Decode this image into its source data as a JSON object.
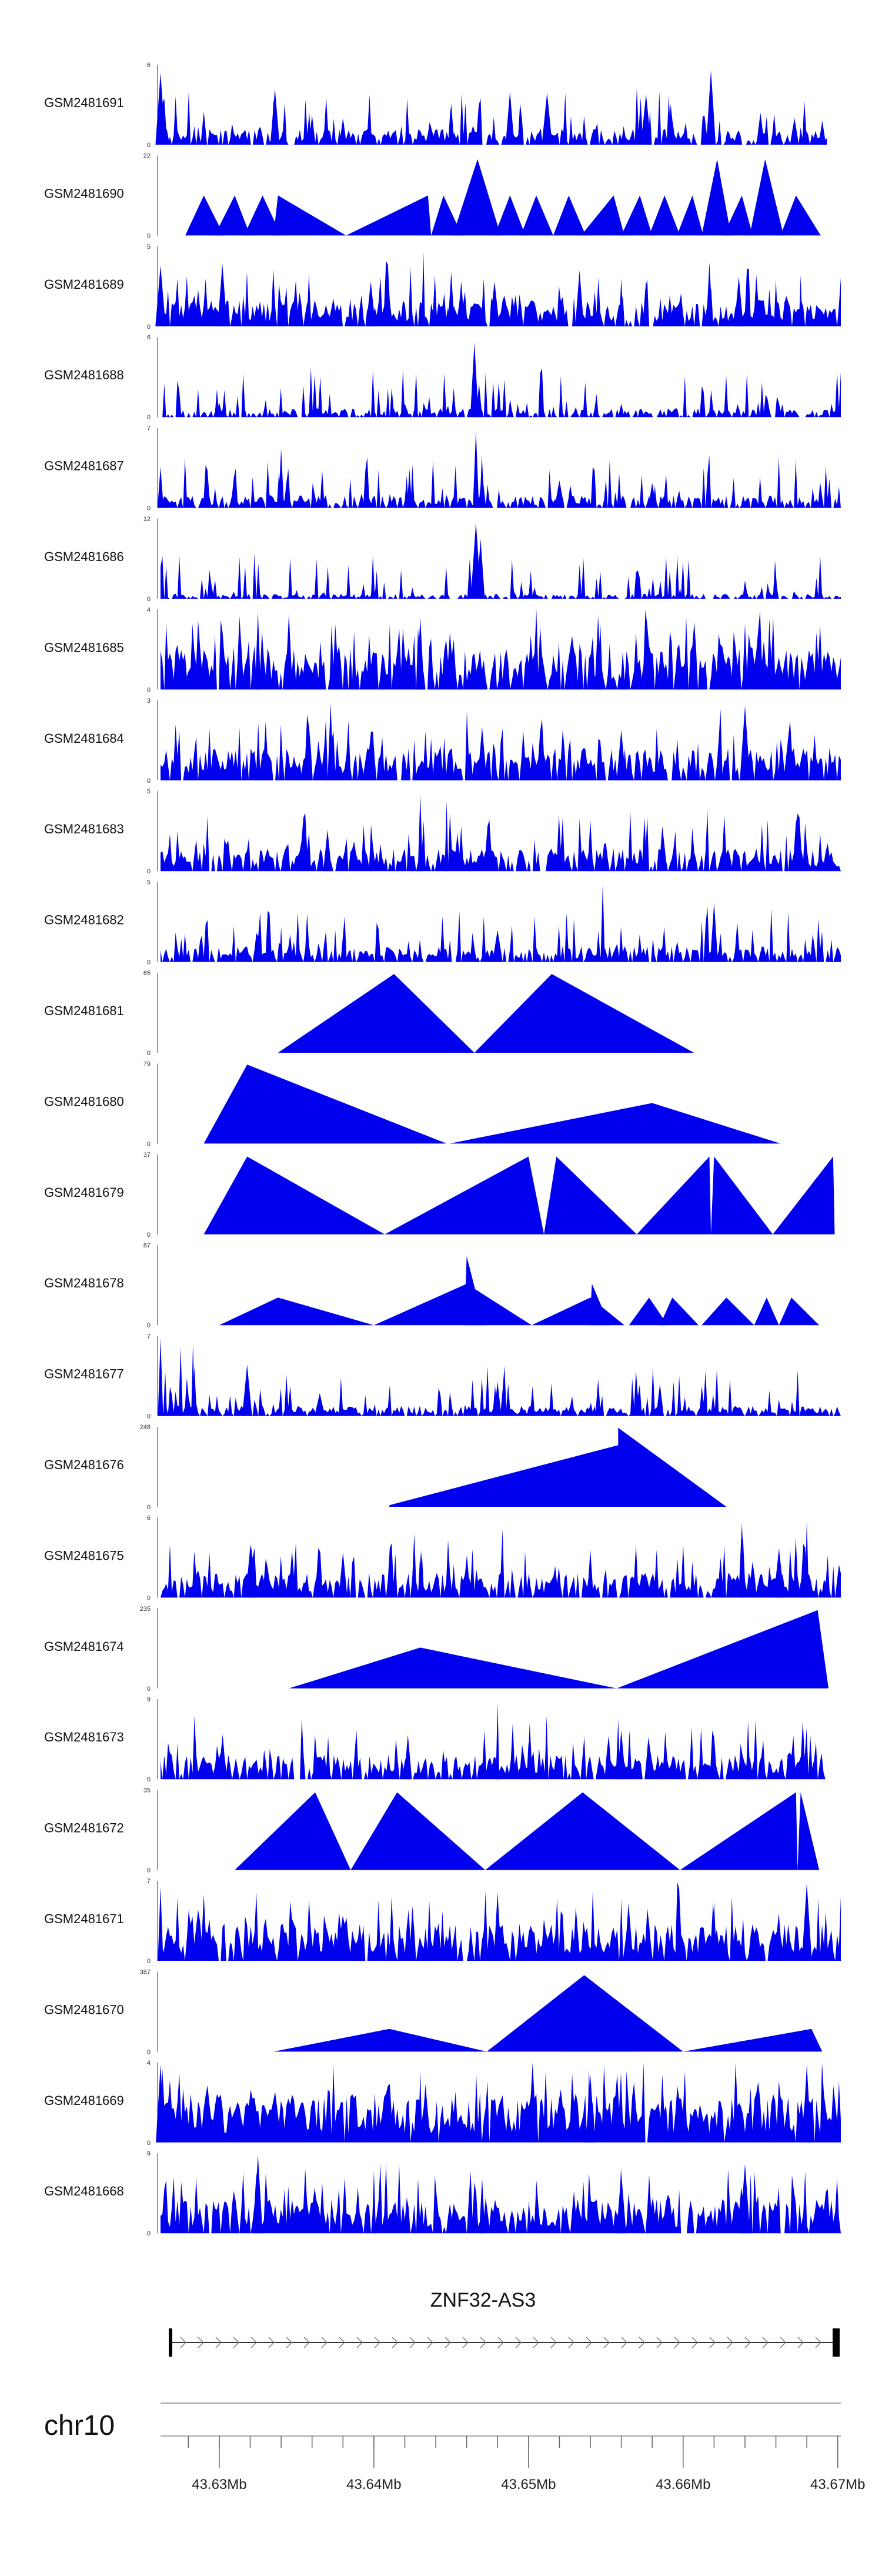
{
  "chart_data": {
    "type": "area",
    "colors": {
      "coverage": "#0000ee",
      "axis": "#555555",
      "text": "#111111"
    },
    "x_domain": [
      43.6262,
      43.6702
    ],
    "tracks": [
      {
        "name": "GSM2481691",
        "ymax": "6",
        "ymin": "0",
        "ymax_value": 6,
        "peaks": [
          [
            43.6262,
            5.4
          ],
          [
            43.6266,
            1.2
          ],
          [
            43.629,
            2.5
          ],
          [
            43.6336,
            4.2
          ],
          [
            43.636,
            2.2
          ],
          [
            43.638,
            2.0
          ],
          [
            43.645,
            3.1
          ],
          [
            43.6488,
            4.0
          ],
          [
            43.6512,
            3.9
          ],
          [
            43.6576,
            3.8
          ],
          [
            43.6592,
            3.0
          ],
          [
            43.6618,
            5.6
          ],
          [
            43.665,
            2.4
          ],
          [
            43.6672,
            2.0
          ],
          [
            43.669,
            1.8
          ]
        ],
        "base": 1.1,
        "density": 0.78,
        "start": 43.6262,
        "end": 43.6693
      },
      {
        "name": "GSM2481690",
        "ymax": "22",
        "ymin": "0",
        "ymax_value": 22,
        "triangles": [
          [
            43.6278,
            43.629,
            43.6303,
            11
          ],
          [
            43.6297,
            43.631,
            43.632,
            11
          ],
          [
            43.6316,
            43.6328,
            43.634,
            11
          ],
          [
            43.6335,
            43.6338,
            43.6382,
            11
          ],
          [
            43.6382,
            43.6435,
            43.6437,
            11
          ],
          [
            43.6437,
            43.6445,
            43.6457,
            11
          ],
          [
            43.6451,
            43.6467,
            43.6482,
            21
          ],
          [
            43.6478,
            43.6488,
            43.6498,
            11
          ],
          [
            43.6495,
            43.6505,
            43.6516,
            11
          ],
          [
            43.6516,
            43.6526,
            43.6537,
            11
          ],
          [
            43.6534,
            43.6555,
            43.6562,
            11
          ],
          [
            43.656,
            43.6572,
            43.658,
            11
          ],
          [
            43.6578,
            43.6588,
            43.6598,
            11
          ],
          [
            43.6596,
            43.6606,
            43.6613,
            11
          ],
          [
            43.6612,
            43.6622,
            43.6631,
            21
          ],
          [
            43.6626,
            43.6638,
            43.6645,
            11
          ],
          [
            43.6643,
            43.6653,
            43.6665,
            21
          ],
          [
            43.6663,
            43.6673,
            43.6689,
            11
          ]
        ]
      },
      {
        "name": "GSM2481689",
        "ymax": "5",
        "ymin": "0",
        "ymax_value": 5,
        "peaks": [
          [
            43.6262,
            3.8
          ],
          [
            43.6302,
            3.9
          ],
          [
            43.6358,
            3.3
          ],
          [
            43.6398,
            2.8
          ],
          [
            43.6432,
            4.7
          ],
          [
            43.645,
            3.4
          ],
          [
            43.6478,
            2.8
          ],
          [
            43.6533,
            3.5
          ],
          [
            43.656,
            3.0
          ],
          [
            43.6576,
            2.9
          ],
          [
            43.6617,
            4.0
          ],
          [
            43.6636,
            3.1
          ],
          [
            43.666,
            2.9
          ],
          [
            43.6676,
            3.2
          ]
        ],
        "base": 1.5,
        "density": 0.85,
        "start": 43.6262,
        "end": 43.6702
      },
      {
        "name": "GSM2481688",
        "ymax": "6",
        "ymin": "0",
        "ymax_value": 6,
        "peaks": [
          [
            43.6465,
            5.6
          ],
          [
            43.6468,
            2.5
          ],
          [
            43.63,
            1.1
          ],
          [
            43.642,
            1.0
          ],
          [
            43.656,
            1.0
          ]
        ],
        "base": 0.6,
        "density": 0.7,
        "start": 43.6262,
        "end": 43.6702
      },
      {
        "name": "GSM2481687",
        "ymax": "7",
        "ymin": "0",
        "ymax_value": 7,
        "peaks": [
          [
            43.6262,
            3.6
          ],
          [
            43.634,
            5.2
          ],
          [
            43.6423,
            3.4
          ],
          [
            43.6466,
            6.8
          ],
          [
            43.647,
            3.1
          ],
          [
            43.652,
            2.4
          ],
          [
            43.658,
            2.2
          ]
        ],
        "base": 1.0,
        "density": 0.8,
        "start": 43.6262,
        "end": 43.6702
      },
      {
        "name": "GSM2481686",
        "ymax": "12",
        "ymin": "0",
        "ymax_value": 12,
        "peaks": [
          [
            43.6466,
            11.5
          ],
          [
            43.6462,
            6.0
          ],
          [
            43.6469,
            9.0
          ],
          [
            43.6598,
            1.6
          ],
          [
            43.64,
            1.4
          ],
          [
            43.635,
            1.3
          ]
        ],
        "base": 0.7,
        "density": 0.7,
        "start": 43.6262,
        "end": 43.6702
      },
      {
        "name": "GSM2481685",
        "ymax": "4",
        "ymin": "0",
        "ymax_value": 4,
        "peaks": [
          [
            43.6325,
            3.9
          ],
          [
            43.6345,
            3.8
          ],
          [
            43.643,
            3.6
          ],
          [
            43.6545,
            3.7
          ],
          [
            43.6602,
            3.6
          ],
          [
            43.664,
            3.3
          ]
        ],
        "base": 2.0,
        "density": 0.9,
        "start": 43.6262,
        "end": 43.6702
      },
      {
        "name": "GSM2481684",
        "ymax": "3",
        "ymin": "0",
        "ymax_value": 3,
        "peaks": [
          [
            43.6372,
            2.9
          ],
          [
            43.664,
            2.8
          ],
          [
            43.633,
            2.2
          ],
          [
            43.647,
            2.0
          ],
          [
            43.656,
            1.9
          ]
        ],
        "base": 1.1,
        "density": 0.85,
        "start": 43.6262,
        "end": 43.6702
      },
      {
        "name": "GSM2481683",
        "ymax": "5",
        "ymin": "0",
        "ymax_value": 5,
        "peaks": [
          [
            43.643,
            4.8
          ],
          [
            43.6447,
            4.4
          ],
          [
            43.654,
            3.2
          ],
          [
            43.6575,
            3.4
          ],
          [
            43.637,
            2.6
          ]
        ],
        "base": 1.3,
        "density": 0.85,
        "start": 43.6262,
        "end": 43.6702
      },
      {
        "name": "GSM2481682",
        "ymax": "5",
        "ymin": "0",
        "ymax_value": 5,
        "peaks": [
          [
            43.6548,
            4.9
          ],
          [
            43.662,
            3.7
          ],
          [
            43.634,
            2.2
          ],
          [
            43.648,
            2.0
          ],
          [
            43.6635,
            2.5
          ]
        ],
        "base": 0.9,
        "density": 0.82,
        "start": 43.6262,
        "end": 43.6702
      },
      {
        "name": "GSM2481681",
        "ymax": "65",
        "ymin": "0",
        "ymax_value": 65,
        "triangles": [
          [
            43.6338,
            43.6413,
            43.6465,
            64
          ],
          [
            43.6465,
            43.6515,
            43.6607,
            64
          ]
        ]
      },
      {
        "name": "GSM2481680",
        "ymax": "79",
        "ymin": "0",
        "ymax_value": 79,
        "triangles": [
          [
            43.629,
            43.6318,
            43.6447,
            78
          ],
          [
            43.6449,
            43.658,
            43.6663,
            40
          ]
        ]
      },
      {
        "name": "GSM2481679",
        "ymax": "37",
        "ymin": "0",
        "ymax_value": 37,
        "triangles": [
          [
            43.629,
            43.6318,
            43.6407,
            36
          ],
          [
            43.6407,
            43.65,
            43.651,
            36
          ],
          [
            43.651,
            43.6518,
            43.657,
            36
          ],
          [
            43.657,
            43.6617,
            43.6618,
            36
          ],
          [
            43.6618,
            43.662,
            43.6658,
            36
          ],
          [
            43.6658,
            43.6697,
            43.6698,
            36
          ]
        ]
      },
      {
        "name": "GSM2481678",
        "ymax": "87",
        "ymin": "0",
        "ymax_value": 87,
        "triangles": [
          [
            43.63,
            43.6338,
            43.64,
            30
          ],
          [
            43.64,
            43.646,
            43.6502,
            45
          ],
          [
            43.6502,
            43.654,
            43.6562,
            30
          ],
          [
            43.6565,
            43.6578,
            43.659,
            30
          ],
          [
            43.6585,
            43.6593,
            43.661,
            30
          ],
          [
            43.6612,
            43.6628,
            43.6646,
            30
          ],
          [
            43.6646,
            43.6654,
            43.6662,
            30
          ],
          [
            43.6662,
            43.667,
            43.6688,
            30
          ]
        ],
        "spikes": [
          [
            43.646,
            75
          ],
          [
            43.6541,
            45
          ]
        ]
      },
      {
        "name": "GSM2481677",
        "ymax": "7",
        "ymin": "0",
        "ymax_value": 7,
        "peaks": [
          [
            43.6262,
            6.8
          ],
          [
            43.6265,
            4.0
          ],
          [
            43.6275,
            6.0
          ],
          [
            43.6283,
            6.3
          ],
          [
            43.6318,
            4.5
          ],
          [
            43.6365,
            2.0
          ],
          [
            43.648,
            3.0
          ],
          [
            43.6545,
            3.2
          ],
          [
            43.6585,
            2.8
          ]
        ],
        "base": 0.8,
        "density": 0.85,
        "start": 43.6262,
        "end": 43.6702
      },
      {
        "name": "GSM2481676",
        "ymax": "248",
        "ymin": "0",
        "ymax_value": 248,
        "triangles": [
          [
            43.641,
            43.6558,
            43.6628,
            245
          ]
        ],
        "low_start": 5
      },
      {
        "name": "GSM2481675",
        "ymax": "6",
        "ymin": "0",
        "ymax_value": 6,
        "peaks": [
          [
            43.632,
            3.8
          ],
          [
            43.638,
            3.4
          ],
          [
            43.643,
            3.5
          ],
          [
            43.654,
            3.6
          ],
          [
            43.66,
            4.0
          ],
          [
            43.6638,
            5.6
          ],
          [
            43.668,
            5.8
          ],
          [
            43.6662,
            3.7
          ]
        ],
        "base": 1.7,
        "density": 0.85,
        "start": 43.6262,
        "end": 43.6702
      },
      {
        "name": "GSM2481674",
        "ymax": "235",
        "ymin": "0",
        "ymax_value": 235,
        "triangles": [
          [
            43.6345,
            43.643,
            43.6557,
            120
          ],
          [
            43.6557,
            43.6687,
            43.6694,
            230
          ]
        ]
      },
      {
        "name": "GSM2481673",
        "ymax": "9",
        "ymin": "0",
        "ymax_value": 9,
        "peaks": [
          [
            43.648,
            8.7
          ],
          [
            43.656,
            5.5
          ],
          [
            43.6642,
            6.5
          ],
          [
            43.6422,
            5.0
          ],
          [
            43.65,
            4.2
          ]
        ],
        "base": 2.5,
        "density": 0.85,
        "start": 43.6262,
        "end": 43.6692
      },
      {
        "name": "GSM2481672",
        "ymax": "35",
        "ymin": "0",
        "ymax_value": 35,
        "triangles": [
          [
            43.631,
            43.6362,
            43.6385,
            34
          ],
          [
            43.6385,
            43.6415,
            43.6472,
            34
          ],
          [
            43.6472,
            43.6535,
            43.6598,
            34
          ],
          [
            43.6598,
            43.6673,
            43.6674,
            34
          ],
          [
            43.6674,
            43.6676,
            43.6688,
            34
          ]
        ]
      },
      {
        "name": "GSM2481671",
        "ymax": "7",
        "ymin": "0",
        "ymax_value": 7,
        "peaks": [
          [
            43.6262,
            6.5
          ],
          [
            43.629,
            5.8
          ],
          [
            43.648,
            6.0
          ],
          [
            43.656,
            5.4
          ],
          [
            43.668,
            6.8
          ],
          [
            43.662,
            5.2
          ]
        ],
        "base": 3.0,
        "density": 0.9,
        "start": 43.6262,
        "end": 43.6702
      },
      {
        "name": "GSM2481670",
        "ymax": "387",
        "ymin": "0",
        "ymax_value": 387,
        "triangles": [
          [
            43.6335,
            43.641,
            43.6473,
            110
          ],
          [
            43.6473,
            43.6536,
            43.66,
            370
          ],
          [
            43.66,
            43.6683,
            43.669,
            110
          ]
        ],
        "notch": [
          43.6538,
          320
        ]
      },
      {
        "name": "GSM2481669",
        "ymax": "4",
        "ymin": "0",
        "ymax_value": 4,
        "peaks": [
          [
            43.6262,
            3.9
          ],
          [
            43.643,
            3.6
          ],
          [
            43.654,
            3.4
          ],
          [
            43.668,
            3.9
          ]
        ],
        "base": 2.2,
        "density": 0.95,
        "start": 43.6262,
        "end": 43.6702
      },
      {
        "name": "GSM2481668",
        "ymax": "9",
        "ymin": "0",
        "ymax_value": 9,
        "peaks": [
          [
            43.6325,
            8.8
          ],
          [
            43.64,
            7.0
          ],
          [
            43.664,
            7.8
          ],
          [
            43.656,
            6.8
          ],
          [
            43.647,
            6.2
          ]
        ],
        "base": 3.5,
        "density": 0.9,
        "start": 43.6262,
        "end": 43.6702
      }
    ],
    "gene": {
      "name": "ZNF32-AS3",
      "start": 43.6262,
      "end": 43.6702
    },
    "chromosome": "chr10",
    "x_ticks": [
      {
        "value": 43.63,
        "label": "43.63Mb"
      },
      {
        "value": 43.64,
        "label": "43.64Mb"
      },
      {
        "value": 43.65,
        "label": "43.65Mb"
      },
      {
        "value": 43.66,
        "label": "43.66Mb"
      },
      {
        "value": 43.67,
        "label": "43.67Mb"
      }
    ],
    "minor_tick_step": 0.002
  }
}
